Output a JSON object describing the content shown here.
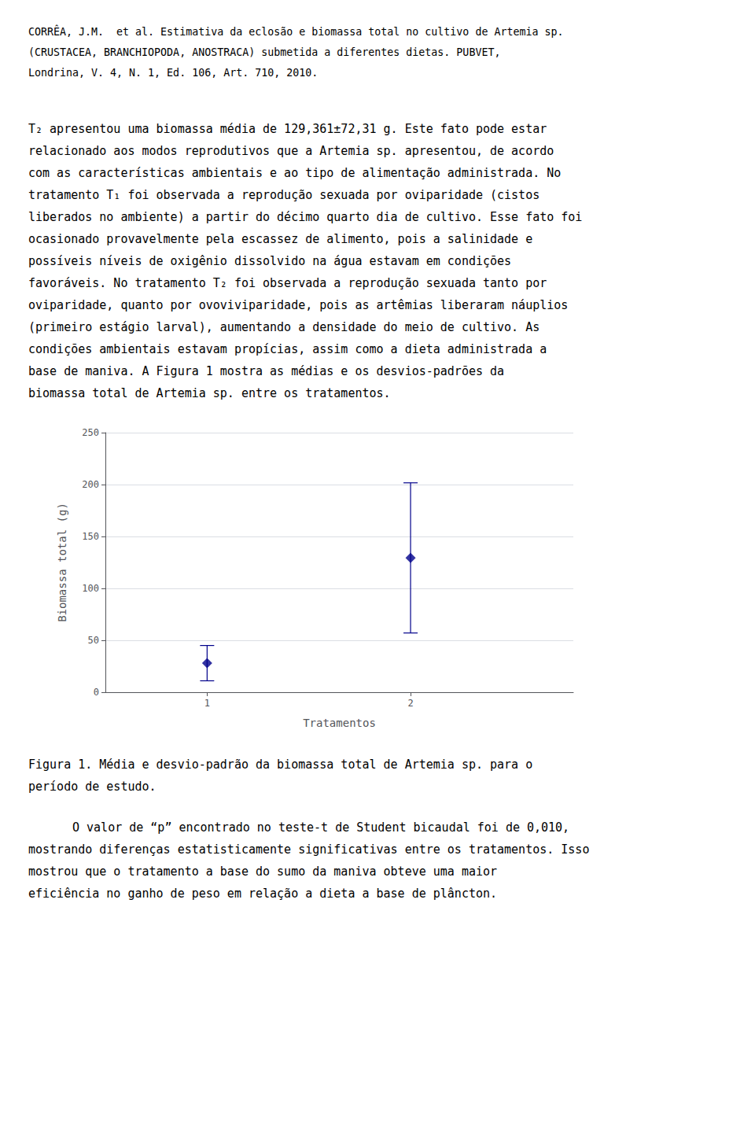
{
  "chart_data": {
    "type": "scatter",
    "x": [
      1,
      2
    ],
    "values": [
      28.0,
      129.361
    ],
    "errors": [
      17.0,
      72.31
    ],
    "color": "#00008B",
    "marker": "diamond",
    "xlabel": "Tratamentos",
    "ylabel": "Biomassa total (g)",
    "xlim": [
      0.5,
      2.8
    ],
    "xticks": [
      1,
      2
    ],
    "ylim": [
      0,
      250
    ],
    "yticks": [
      0,
      50,
      100,
      150,
      200,
      250
    ],
    "grid": true,
    "annotations": [
      [
        "CORRÊA, J.M.  et al. Estimativa da eclosão e biomassa total no cultivo de Artemia sp.",
        "(CRUSTACEA, BRANCHIOPODA, ANOSTRACA) submetida a diferentes dietas. PUBVET,",
        "Londrina, V. 4, N. 1, Ed. 106, Art. 710, 2010."
      ],
      [
        "T₂ apresentou uma biomassa média de 129,361±72,31 g. Este fato pode estar",
        "relacionado aos modos reprodutivos que a Artemia sp. apresentou, de acordo",
        "com as características ambientais e ao tipo de alimentação administrada. No",
        "tratamento T₁ foi observada a reprodução sexuada por oviparidade (cistos",
        "liberados no ambiente) a partir do décimo quarto dia de cultivo. Esse fato foi",
        "ocasionado provavelmente pela escassez de alimento, pois a salinidade e",
        "possíveis níveis de oxigênio dissolvido na água estavam em condições",
        "favoráveis. No tratamento T₂ foi observada a reprodução sexuada tanto por",
        "oviparidade, quanto por ovoviviparidade, pois as artêmias liberaram náuplios",
        "(primeiro estágio larval), aumentando a densidade do meio de cultivo. As",
        "condições ambientais estavam propícias, assim como a dieta administrada a",
        "base de maniva. A Figura 1 mostra as médias e os desvios-padrões da",
        "biomassa total de Artemia sp. entre os tratamentos."
      ],
      [
        "Figura 1. Média e desvio-padrão da biomassa total de Artemia sp. para o",
        "período de estudo."
      ],
      [
        "O valor de “p” encontrado no teste-t de Student bicaudal foi de 0,010,",
        "mostrando diferenças estatisticamente significativas entre os tratamentos. Isso",
        "mostrou que o tratamento a base do sumo da maniva obteve uma maior",
        "eficiência no ganho de peso em relação a dieta a base de plâncton."
      ]
    ]
  }
}
